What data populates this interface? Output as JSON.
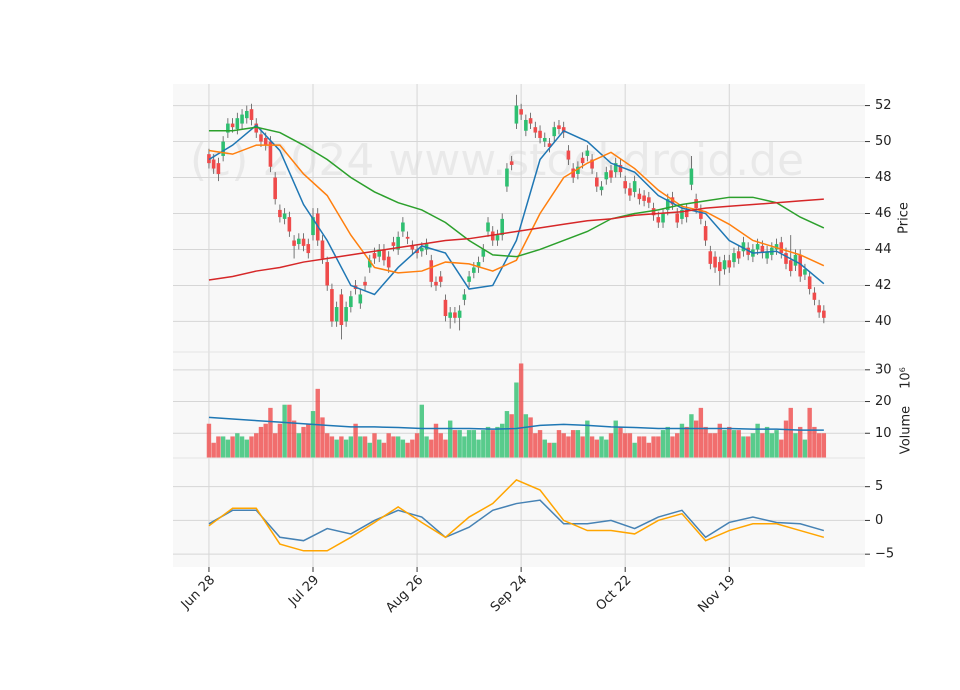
{
  "chart_data": {
    "type": "candlestick",
    "watermark": "(c) 2024 www.stockdroid.de",
    "xlim": [
      -7.6,
      138.7
    ],
    "xticks": [
      {
        "value": 0,
        "label": "Jun 28"
      },
      {
        "value": 22,
        "label": "Jul 29"
      },
      {
        "value": 44,
        "label": "Aug 26"
      },
      {
        "value": 66,
        "label": "Sep 24"
      },
      {
        "value": 88,
        "label": "Oct 22"
      },
      {
        "value": 110,
        "label": "Nov 19"
      }
    ],
    "grid": true,
    "price": {
      "label": "Price",
      "ylim": [
        38.3,
        53.2
      ],
      "yticks": [
        40,
        42,
        44,
        46,
        48,
        50,
        52
      ],
      "up_color": "#2fbf71",
      "down_color": "#ef4b4b",
      "open": [
        49.3,
        49.0,
        48.8,
        49.2,
        50.5,
        51.0,
        50.7,
        51.0,
        51.3,
        51.8,
        51.0,
        50.4,
        50.2,
        50.0,
        48.0,
        46.2,
        45.7,
        45.8,
        44.5,
        44.3,
        44.6,
        44.3,
        44.8,
        46.0,
        44.5,
        43.3,
        41.8,
        40.0,
        41.5,
        40.0,
        40.8,
        42.0,
        41.0,
        42.2,
        43.0,
        43.8,
        43.6,
        44.0,
        43.6,
        44.4,
        44.0,
        45.0,
        44.7,
        44.2,
        44.0,
        43.9,
        44.0,
        43.4,
        42.2,
        42.5,
        41.2,
        40.2,
        40.5,
        40.2,
        41.2,
        42.2,
        42.7,
        43.0,
        43.6,
        45.0,
        45.0,
        44.5,
        44.8,
        47.5,
        48.9,
        51.0,
        51.8,
        50.6,
        51.3,
        50.8,
        50.6,
        50.0,
        49.9,
        50.3,
        50.9,
        50.8,
        49.5,
        48.5,
        48.2,
        49.1,
        49.2,
        49.0,
        48.0,
        47.3,
        47.9,
        48.4,
        48.3,
        48.7,
        47.8,
        47.4,
        47.2,
        47.1,
        47.0,
        46.9,
        46.3,
        45.8,
        45.5,
        46.2,
        46.9,
        46.0,
        45.7,
        46.2,
        47.6,
        46.8,
        46.2,
        45.3,
        43.9,
        43.6,
        43.3,
        42.9,
        43.4,
        43.3,
        43.9,
        43.9,
        44.1,
        43.6,
        44.0,
        44.2,
        43.5,
        43.7,
        44.0,
        44.4,
        43.8,
        43.4,
        43.1,
        43.7,
        42.6,
        42.5,
        41.6,
        40.9,
        40.6
      ],
      "high": [
        49.6,
        49.3,
        49.1,
        50.3,
        51.3,
        51.3,
        51.6,
        51.8,
        52.0,
        52.1,
        51.3,
        50.7,
        50.5,
        50.3,
        48.3,
        46.5,
        46.3,
        46.1,
        44.8,
        44.9,
        44.9,
        44.6,
        46.3,
        46.3,
        44.8,
        43.6,
        42.1,
        41.1,
        41.8,
        41.1,
        41.7,
        42.3,
        41.8,
        42.5,
        43.7,
        44.1,
        44.3,
        44.3,
        43.9,
        44.7,
        45.0,
        45.8,
        45.0,
        44.5,
        44.3,
        44.4,
        44.6,
        43.7,
        42.5,
        42.8,
        41.5,
        40.8,
        40.8,
        40.9,
        41.8,
        42.8,
        43.3,
        43.6,
        44.3,
        45.8,
        45.3,
        45.1,
        46.0,
        48.8,
        49.2,
        52.6,
        52.1,
        51.5,
        51.6,
        51.1,
        50.9,
        50.5,
        50.2,
        51.1,
        51.2,
        51.1,
        49.8,
        48.8,
        48.9,
        49.4,
        49.8,
        49.3,
        48.3,
        47.8,
        48.6,
        48.7,
        49.1,
        49.0,
        48.1,
        47.7,
        48.1,
        47.4,
        47.3,
        47.2,
        46.6,
        46.1,
        46.3,
        47.1,
        47.2,
        46.3,
        46.5,
        46.5,
        49.2,
        47.1,
        46.5,
        45.6,
        44.2,
        43.9,
        43.6,
        43.7,
        43.7,
        44.1,
        44.2,
        44.7,
        44.4,
        44.3,
        44.6,
        44.5,
        44.2,
        44.4,
        44.6,
        44.7,
        44.1,
        44.8,
        44.0,
        44.0,
        43.2,
        42.8,
        41.9,
        41.2,
        40.9
      ],
      "low": [
        48.5,
        48.2,
        47.8,
        48.9,
        50.2,
        50.5,
        50.4,
        50.7,
        51.0,
        50.9,
        50.2,
        49.7,
        49.5,
        48.3,
        46.5,
        45.5,
        45.4,
        44.7,
        43.5,
        44.0,
        43.9,
        43.5,
        44.5,
        44.2,
        43.2,
        41.7,
        39.7,
        39.7,
        39.0,
        39.7,
        40.5,
        41.5,
        40.7,
        41.7,
        42.7,
        43.2,
        43.3,
        43.1,
        42.7,
        43.9,
        43.7,
        44.7,
        44.3,
        43.7,
        43.5,
        43.6,
        43.7,
        41.9,
        41.7,
        41.9,
        40.0,
        39.6,
        39.9,
        39.5,
        40.9,
        41.9,
        42.4,
        42.7,
        43.3,
        44.7,
        44.2,
        44.2,
        44.5,
        47.2,
        48.4,
        50.7,
        51.2,
        50.3,
        50.7,
        50.2,
        49.9,
        49.7,
        49.4,
        50.0,
        50.4,
        50.2,
        48.7,
        47.7,
        47.9,
        48.5,
        48.9,
        48.2,
        47.2,
        47.0,
        47.6,
        47.7,
        48.0,
        48.0,
        47.1,
        46.7,
        46.9,
        46.5,
        46.4,
        46.3,
        45.6,
        45.2,
        45.2,
        45.9,
        46.2,
        45.2,
        45.4,
        45.5,
        47.3,
        46.0,
        45.4,
        44.2,
        42.9,
        42.7,
        42.0,
        42.6,
        42.7,
        43.0,
        43.2,
        43.6,
        43.4,
        43.3,
        43.7,
        43.5,
        43.2,
        43.4,
        43.7,
        43.5,
        42.9,
        42.5,
        42.8,
        42.2,
        42.3,
        41.5,
        40.9,
        40.2,
        39.9
      ],
      "close": [
        48.8,
        48.5,
        48.2,
        50.0,
        51.0,
        50.8,
        51.3,
        51.5,
        51.7,
        51.2,
        50.5,
        50.0,
        49.8,
        48.6,
        46.8,
        45.8,
        46.0,
        45.0,
        44.2,
        44.6,
        44.2,
        43.8,
        45.8,
        44.5,
        43.5,
        42.0,
        40.0,
        40.8,
        39.8,
        40.8,
        41.4,
        41.8,
        41.5,
        42.0,
        43.4,
        43.5,
        44.0,
        43.4,
        43.0,
        44.2,
        44.7,
        45.5,
        44.6,
        44.0,
        43.8,
        44.1,
        44.3,
        42.2,
        42.0,
        42.2,
        40.3,
        40.5,
        40.2,
        40.6,
        41.5,
        42.5,
        43.0,
        43.3,
        44.0,
        45.5,
        44.5,
        44.8,
        45.7,
        48.5,
        48.7,
        52.0,
        51.5,
        51.2,
        51.0,
        50.5,
        50.2,
        50.2,
        49.7,
        50.8,
        50.7,
        50.5,
        49.0,
        48.0,
        48.6,
        48.8,
        49.5,
        48.5,
        47.5,
        47.5,
        48.3,
        48.0,
        48.8,
        48.3,
        47.4,
        47.0,
        47.8,
        46.8,
        46.7,
        46.6,
        45.9,
        45.5,
        46.0,
        46.8,
        46.5,
        45.5,
        46.2,
        45.8,
        48.5,
        46.3,
        45.7,
        44.5,
        43.2,
        43.0,
        42.8,
        43.4,
        43.0,
        43.8,
        43.5,
        44.4,
        43.7,
        44.0,
        44.3,
        43.8,
        43.9,
        44.1,
        44.3,
        43.8,
        43.2,
        42.8,
        43.7,
        42.5,
        42.9,
        41.8,
        41.2,
        40.5,
        40.2
      ],
      "ma_x": [
        0,
        5,
        10,
        15,
        20,
        25,
        30,
        35,
        40,
        45,
        50,
        55,
        60,
        65,
        70,
        75,
        80,
        85,
        90,
        95,
        100,
        105,
        110,
        115,
        120,
        125,
        130
      ],
      "ma": [
        {
          "color": "#1f77b4",
          "values": [
            49.0,
            49.8,
            50.9,
            49.5,
            46.5,
            44.5,
            42.0,
            41.5,
            43.0,
            44.2,
            43.8,
            41.8,
            42.0,
            44.5,
            49.0,
            50.6,
            50.0,
            48.8,
            48.3,
            47.0,
            46.3,
            46.0,
            44.5,
            43.8,
            43.9,
            43.2,
            42.1
          ]
        },
        {
          "color": "#ff7f0e",
          "values": [
            49.5,
            49.3,
            49.8,
            49.8,
            48.2,
            47.0,
            44.8,
            43.0,
            42.7,
            42.8,
            43.3,
            43.2,
            42.8,
            43.4,
            46.0,
            48.0,
            48.8,
            49.4,
            48.5,
            47.3,
            46.4,
            46.1,
            45.4,
            44.5,
            44.1,
            43.7,
            43.1
          ]
        },
        {
          "color": "#2ca02c",
          "values": [
            50.6,
            50.6,
            50.8,
            50.5,
            49.8,
            49.0,
            48.0,
            47.2,
            46.6,
            46.2,
            45.5,
            44.5,
            43.7,
            43.6,
            44.0,
            44.5,
            45.0,
            45.7,
            46.0,
            46.2,
            46.5,
            46.7,
            46.9,
            46.9,
            46.6,
            45.8,
            45.2
          ]
        },
        {
          "color": "#d62728",
          "values": [
            42.3,
            42.5,
            42.8,
            43.0,
            43.3,
            43.5,
            43.7,
            43.9,
            44.1,
            44.3,
            44.5,
            44.6,
            44.8,
            45.0,
            45.2,
            45.4,
            45.6,
            45.7,
            45.9,
            46.0,
            46.1,
            46.3,
            46.4,
            46.5,
            46.6,
            46.7,
            46.8
          ]
        }
      ]
    },
    "volume": {
      "label": "Volume",
      "unit": "10⁶",
      "ylim": [
        2.2,
        35.3
      ],
      "yticks": [
        10,
        20,
        30
      ],
      "values": [
        13,
        7,
        9,
        9,
        8,
        9,
        10,
        9,
        8,
        9,
        10,
        12,
        13,
        18,
        10,
        13,
        19,
        19,
        14,
        10,
        12,
        13,
        17,
        24,
        15,
        10,
        9,
        8,
        9,
        8,
        9,
        13,
        9,
        9,
        7,
        10,
        8,
        7,
        10,
        9,
        9,
        8,
        7,
        8,
        10,
        19,
        9,
        8,
        13,
        10,
        8,
        14,
        11,
        11,
        9,
        11,
        11,
        8,
        11,
        12,
        11,
        12,
        13,
        17,
        16,
        26,
        32,
        16,
        15,
        10,
        11,
        8,
        7,
        7,
        11,
        10,
        9,
        11,
        11,
        9,
        14,
        9,
        8,
        9,
        8,
        10,
        14,
        12,
        10,
        10,
        7,
        9,
        9,
        7,
        9,
        9,
        11,
        12,
        9,
        10,
        13,
        12,
        16,
        14,
        18,
        12,
        10,
        10,
        13,
        11,
        12,
        11,
        11,
        9,
        9,
        10,
        13,
        10,
        12,
        10,
        11,
        8,
        14,
        18,
        10,
        12,
        8,
        18,
        12,
        10,
        10
      ],
      "ma": {
        "color": "#1f77b4",
        "values": [
          15,
          14.5,
          14,
          13.5,
          13,
          12.5,
          12,
          12,
          11.8,
          11.5,
          11.5,
          11.5,
          11.3,
          11.5,
          12.5,
          12.8,
          12.5,
          12,
          11.8,
          11.5,
          11.5,
          11.5,
          11.5,
          11.3,
          11.3,
          11,
          11
        ]
      }
    },
    "macd": {
      "ylim": [
        -6.9,
        9.1
      ],
      "yticks": [
        {
          "value": -5,
          "label": "−5"
        },
        0,
        5
      ],
      "series": [
        {
          "color": "#4682b4",
          "values": [
            -0.5,
            1.5,
            1.5,
            -2.5,
            -3.0,
            -1.2,
            -2.0,
            0.0,
            1.5,
            0.5,
            -2.5,
            -1.0,
            1.5,
            2.5,
            3.0,
            -0.5,
            -0.5,
            0.0,
            -1.2,
            0.5,
            1.5,
            -2.5,
            -0.3,
            0.5,
            -0.3,
            -0.5,
            -1.5
          ]
        },
        {
          "color": "#ffa500",
          "values": [
            -0.8,
            1.8,
            1.8,
            -3.5,
            -4.5,
            -4.5,
            -2.5,
            -0.3,
            2.0,
            -0.3,
            -2.5,
            0.5,
            2.5,
            6.0,
            4.5,
            0.0,
            -1.5,
            -1.5,
            -2.0,
            0.0,
            1.0,
            -3.0,
            -1.5,
            -0.5,
            -0.5,
            -1.5,
            -2.5
          ]
        }
      ]
    }
  }
}
